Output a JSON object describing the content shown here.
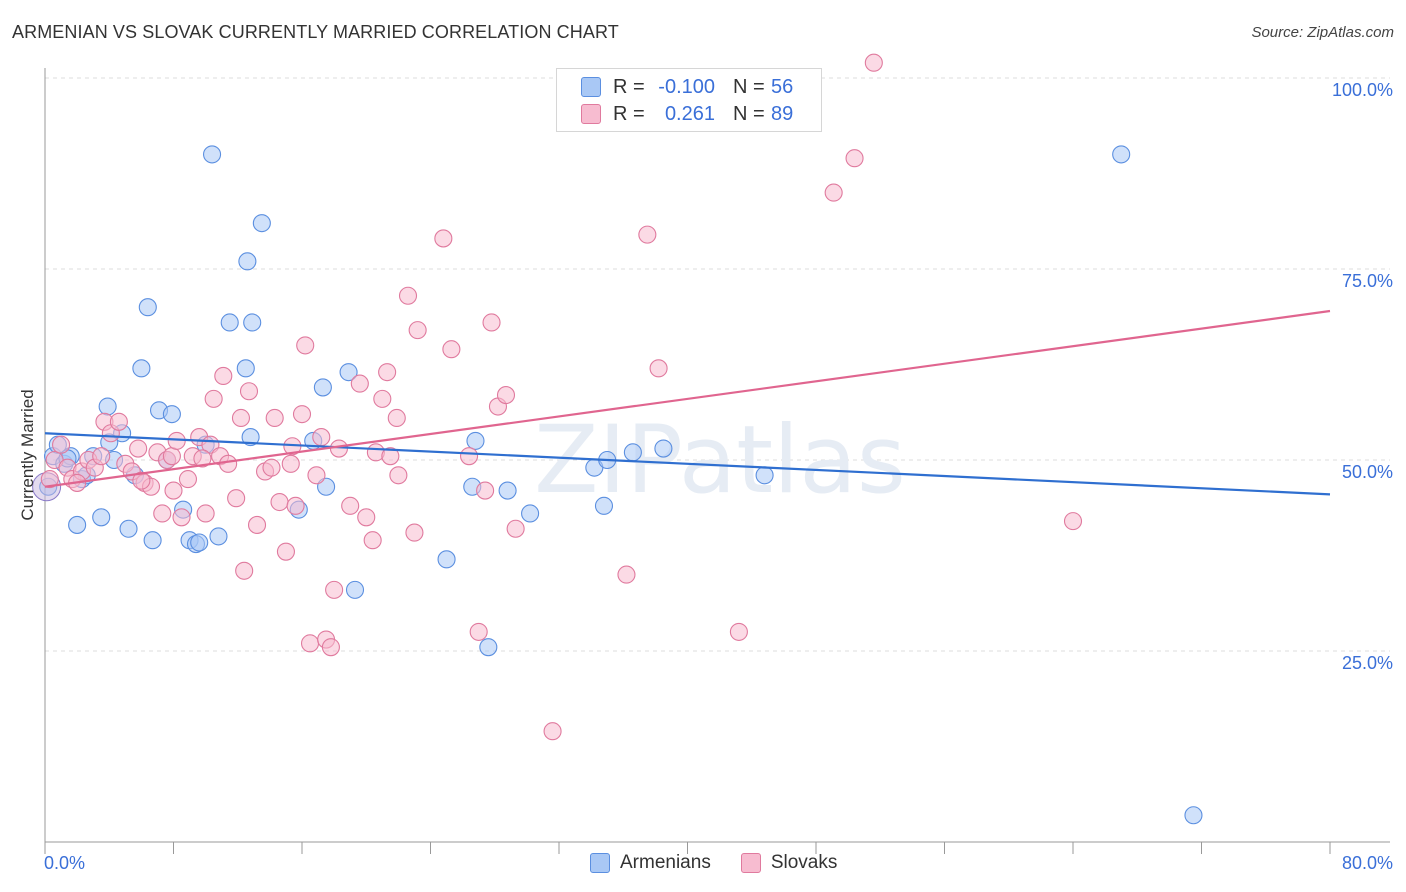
{
  "title": "ARMENIAN VS SLOVAK CURRENTLY MARRIED CORRELATION CHART",
  "source": "Source: ZipAtlas.com",
  "watermark": "ZIPatlas",
  "legend": {
    "rows": [
      {
        "r_label": "R =",
        "r_value": "-0.100",
        "n_label": "N =",
        "n_value": "56",
        "color": "#a9c8f5",
        "border": "#5b8fe0"
      },
      {
        "r_label": "R =",
        "r_value": "0.261",
        "n_label": "N =",
        "n_value": "89",
        "color": "#f7bcd0",
        "border": "#e07a9e"
      }
    ]
  },
  "bottom_legend": [
    {
      "label": "Armenians",
      "color": "#a9c8f5",
      "border": "#5b8fe0"
    },
    {
      "label": "Slovaks",
      "color": "#f7bcd0",
      "border": "#e07a9e"
    }
  ],
  "chart_data": {
    "type": "scatter",
    "title": "ARMENIAN VS SLOVAK CURRENTLY MARRIED CORRELATION CHART",
    "xlabel": "",
    "ylabel": "Currently Married",
    "xlim": [
      0,
      80
    ],
    "ylim": [
      0,
      100
    ],
    "x_tick_labels": [
      "0.0%",
      "80.0%"
    ],
    "y_tick_labels": [
      "25.0%",
      "50.0%",
      "75.0%",
      "100.0%"
    ],
    "y_ticks": [
      25,
      50,
      75,
      100
    ],
    "grid": true,
    "legend_position": "top-center",
    "series": [
      {
        "name": "Armenians",
        "color": "#5b8fe0",
        "fill": "#a9c8f5",
        "trend": {
          "x": [
            0,
            80
          ],
          "y": [
            53.5,
            45.5
          ],
          "color": "#2f6fd0"
        },
        "points": [
          [
            0.2,
            46.5
          ],
          [
            0.5,
            50.5
          ],
          [
            0.8,
            52.0
          ],
          [
            1.2,
            49.5
          ],
          [
            1.6,
            50.5
          ],
          [
            2.0,
            41.5
          ],
          [
            2.3,
            47.5
          ],
          [
            2.6,
            48.0
          ],
          [
            3.0,
            50.5
          ],
          [
            3.5,
            42.5
          ],
          [
            3.9,
            57.0
          ],
          [
            4.3,
            50.0
          ],
          [
            4.8,
            53.5
          ],
          [
            5.2,
            41.0
          ],
          [
            5.6,
            48.0
          ],
          [
            6.0,
            62.0
          ],
          [
            6.4,
            70.0
          ],
          [
            6.7,
            39.5
          ],
          [
            7.1,
            56.5
          ],
          [
            7.9,
            56.0
          ],
          [
            8.6,
            43.5
          ],
          [
            9.0,
            39.5
          ],
          [
            9.4,
            39.0
          ],
          [
            10.0,
            52.0
          ],
          [
            10.4,
            90.0
          ],
          [
            10.8,
            40.0
          ],
          [
            11.5,
            68.0
          ],
          [
            12.5,
            62.0
          ],
          [
            12.9,
            68.0
          ],
          [
            12.8,
            53.0
          ],
          [
            13.5,
            81.0
          ],
          [
            12.6,
            76.0
          ],
          [
            15.8,
            43.5
          ],
          [
            16.7,
            52.5
          ],
          [
            17.3,
            59.5
          ],
          [
            17.5,
            46.5
          ],
          [
            18.9,
            61.5
          ],
          [
            19.3,
            33.0
          ],
          [
            25.0,
            37.0
          ],
          [
            26.6,
            46.5
          ],
          [
            26.8,
            52.5
          ],
          [
            27.6,
            25.5
          ],
          [
            28.8,
            46.0
          ],
          [
            30.2,
            43.0
          ],
          [
            34.2,
            49.0
          ],
          [
            35.0,
            50.0
          ],
          [
            34.8,
            44.0
          ],
          [
            36.6,
            51.0
          ],
          [
            38.5,
            51.5
          ],
          [
            44.8,
            48.0
          ],
          [
            67.0,
            90.0
          ],
          [
            71.5,
            3.5
          ],
          [
            9.6,
            39.2
          ],
          [
            4.0,
            52.3
          ],
          [
            7.6,
            50.0
          ],
          [
            1.4,
            50.2
          ]
        ]
      },
      {
        "name": "Slovaks",
        "color": "#e07a9e",
        "fill": "#f7bcd0",
        "trend": {
          "x": [
            0,
            80
          ],
          "y": [
            46.5,
            69.5
          ],
          "color": "#e0658f"
        },
        "points": [
          [
            0.3,
            47.5
          ],
          [
            0.6,
            50.0
          ],
          [
            1.0,
            52.0
          ],
          [
            1.4,
            49.0
          ],
          [
            1.7,
            47.5
          ],
          [
            2.3,
            48.5
          ],
          [
            2.7,
            50.0
          ],
          [
            3.1,
            49.0
          ],
          [
            3.5,
            50.5
          ],
          [
            3.7,
            55.0
          ],
          [
            4.1,
            53.5
          ],
          [
            4.6,
            55.0
          ],
          [
            5.0,
            49.5
          ],
          [
            5.4,
            48.5
          ],
          [
            5.8,
            51.5
          ],
          [
            6.2,
            47.0
          ],
          [
            6.6,
            46.5
          ],
          [
            7.0,
            51.0
          ],
          [
            7.3,
            43.0
          ],
          [
            7.6,
            50.0
          ],
          [
            7.9,
            50.5
          ],
          [
            8.2,
            52.5
          ],
          [
            8.5,
            42.5
          ],
          [
            8.9,
            47.5
          ],
          [
            9.2,
            50.5
          ],
          [
            9.6,
            53.0
          ],
          [
            10.0,
            43.0
          ],
          [
            10.3,
            52.0
          ],
          [
            10.5,
            58.0
          ],
          [
            10.9,
            50.5
          ],
          [
            11.1,
            61.0
          ],
          [
            11.4,
            49.5
          ],
          [
            11.9,
            45.0
          ],
          [
            12.2,
            55.5
          ],
          [
            12.4,
            35.5
          ],
          [
            12.7,
            59.0
          ],
          [
            13.2,
            41.5
          ],
          [
            13.7,
            48.5
          ],
          [
            14.1,
            49.0
          ],
          [
            14.3,
            55.5
          ],
          [
            14.6,
            44.5
          ],
          [
            15.0,
            38.0
          ],
          [
            15.3,
            49.5
          ],
          [
            15.6,
            44.0
          ],
          [
            16.0,
            56.0
          ],
          [
            16.2,
            65.0
          ],
          [
            16.5,
            26.0
          ],
          [
            16.9,
            48.0
          ],
          [
            17.2,
            53.0
          ],
          [
            17.5,
            26.5
          ],
          [
            17.8,
            25.5
          ],
          [
            18.0,
            33.0
          ],
          [
            18.3,
            51.5
          ],
          [
            19.6,
            60.0
          ],
          [
            20.0,
            42.5
          ],
          [
            20.4,
            39.5
          ],
          [
            20.6,
            51.0
          ],
          [
            21.0,
            58.0
          ],
          [
            21.3,
            61.5
          ],
          [
            21.5,
            50.5
          ],
          [
            21.9,
            55.5
          ],
          [
            22.6,
            71.5
          ],
          [
            23.0,
            40.5
          ],
          [
            23.2,
            67.0
          ],
          [
            24.8,
            79.0
          ],
          [
            25.3,
            64.5
          ],
          [
            26.4,
            50.5
          ],
          [
            27.0,
            27.5
          ],
          [
            27.4,
            46.0
          ],
          [
            27.8,
            68.0
          ],
          [
            28.2,
            57.0
          ],
          [
            28.7,
            58.5
          ],
          [
            29.3,
            41.0
          ],
          [
            31.6,
            14.5
          ],
          [
            36.2,
            35.0
          ],
          [
            37.5,
            79.5
          ],
          [
            38.2,
            62.0
          ],
          [
            43.2,
            27.5
          ],
          [
            49.1,
            85.0
          ],
          [
            50.4,
            89.5
          ],
          [
            51.6,
            102.0
          ],
          [
            64.0,
            42.0
          ],
          [
            6.0,
            47.3
          ],
          [
            8.0,
            46.0
          ],
          [
            2.0,
            47.0
          ],
          [
            9.8,
            50.2
          ],
          [
            15.4,
            51.8
          ],
          [
            19.0,
            44.0
          ],
          [
            22.0,
            48.0
          ]
        ]
      }
    ]
  }
}
